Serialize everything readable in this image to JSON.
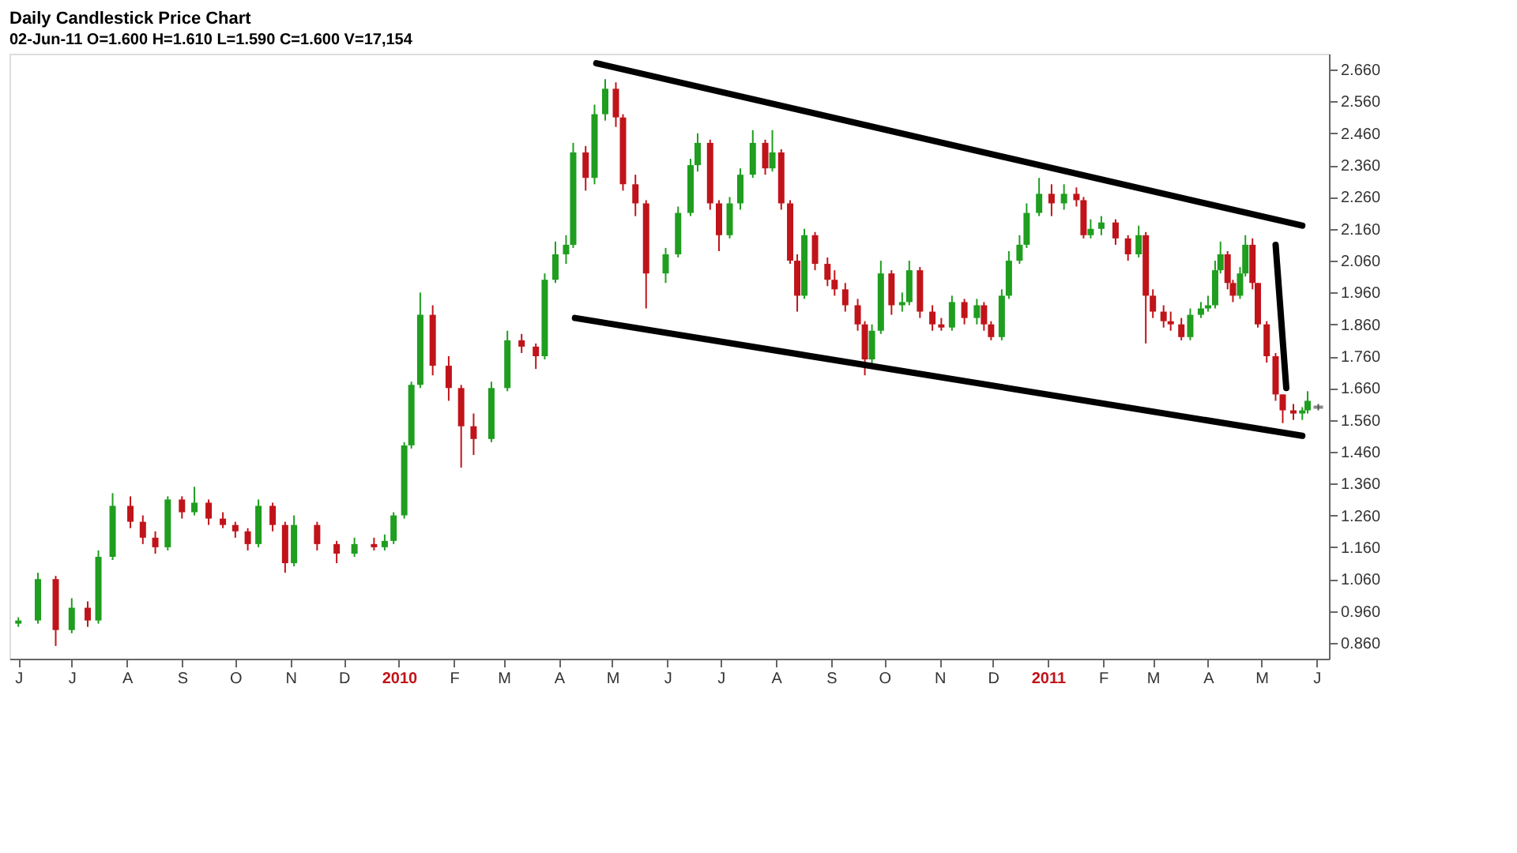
{
  "chart_data": {
    "type": "candlestick",
    "title": "Daily Candlestick Price Chart",
    "subtitle": "02-Jun-11    O=1.600    H=1.610    L=1.590    C=1.600    V=17,154",
    "x": [
      "2009-06-01",
      "2009-06-12",
      "2009-06-22",
      "2009-07-01",
      "2009-07-10",
      "2009-07-16",
      "2009-07-24",
      "2009-08-03",
      "2009-08-10",
      "2009-08-17",
      "2009-08-24",
      "2009-09-01",
      "2009-09-08",
      "2009-09-16",
      "2009-09-24",
      "2009-10-01",
      "2009-10-08",
      "2009-10-14",
      "2009-10-22",
      "2009-10-29",
      "2009-11-03",
      "2009-11-16",
      "2009-11-27",
      "2009-12-07",
      "2009-12-18",
      "2009-12-24",
      "2009-12-29",
      "2010-01-04",
      "2010-01-08",
      "2010-01-13",
      "2010-01-20",
      "2010-01-29",
      "2010-02-05",
      "2010-02-12",
      "2010-02-22",
      "2010-03-03",
      "2010-03-11",
      "2010-03-19",
      "2010-03-24",
      "2010-03-30",
      "2010-04-05",
      "2010-04-09",
      "2010-04-16",
      "2010-04-21",
      "2010-04-27",
      "2010-05-03",
      "2010-05-07",
      "2010-05-14",
      "2010-05-20",
      "2010-05-31",
      "2010-06-07",
      "2010-06-14",
      "2010-06-18",
      "2010-06-25",
      "2010-06-30",
      "2010-07-06",
      "2010-07-12",
      "2010-07-19",
      "2010-07-26",
      "2010-07-30",
      "2010-08-04",
      "2010-08-09",
      "2010-08-13",
      "2010-08-17",
      "2010-08-23",
      "2010-08-30",
      "2010-09-03",
      "2010-09-09",
      "2010-09-16",
      "2010-09-20",
      "2010-09-24",
      "2010-09-29",
      "2010-10-05",
      "2010-10-11",
      "2010-10-15",
      "2010-10-21",
      "2010-10-28",
      "2010-11-02",
      "2010-11-08",
      "2010-11-15",
      "2010-11-22",
      "2010-11-26",
      "2010-11-30",
      "2010-12-06",
      "2010-12-10",
      "2010-12-16",
      "2010-12-20",
      "2010-12-27",
      "2011-01-03",
      "2011-01-10",
      "2011-01-17",
      "2011-01-21",
      "2011-01-25",
      "2011-01-31",
      "2011-02-08",
      "2011-02-15",
      "2011-02-21",
      "2011-02-25",
      "2011-03-01",
      "2011-03-07",
      "2011-03-11",
      "2011-03-17",
      "2011-03-22",
      "2011-03-28",
      "2011-04-01",
      "2011-04-05",
      "2011-04-08",
      "2011-04-12",
      "2011-04-15",
      "2011-04-19",
      "2011-04-22",
      "2011-04-26",
      "2011-04-29",
      "2011-05-04",
      "2011-05-09",
      "2011-05-13",
      "2011-05-19",
      "2011-05-24",
      "2011-05-27",
      "2011-06-02"
    ],
    "ohlc": [
      [
        0.92,
        0.94,
        0.91,
        0.93
      ],
      [
        0.93,
        1.08,
        0.92,
        1.06
      ],
      [
        1.06,
        1.07,
        0.85,
        0.9
      ],
      [
        0.9,
        1.0,
        0.89,
        0.97
      ],
      [
        0.97,
        0.99,
        0.91,
        0.93
      ],
      [
        0.93,
        1.15,
        0.92,
        1.13
      ],
      [
        1.13,
        1.33,
        1.12,
        1.29
      ],
      [
        1.29,
        1.32,
        1.22,
        1.24
      ],
      [
        1.24,
        1.26,
        1.17,
        1.19
      ],
      [
        1.19,
        1.21,
        1.14,
        1.16
      ],
      [
        1.16,
        1.32,
        1.15,
        1.31
      ],
      [
        1.31,
        1.32,
        1.25,
        1.27
      ],
      [
        1.27,
        1.35,
        1.26,
        1.3
      ],
      [
        1.3,
        1.31,
        1.23,
        1.25
      ],
      [
        1.25,
        1.27,
        1.22,
        1.23
      ],
      [
        1.23,
        1.24,
        1.19,
        1.21
      ],
      [
        1.21,
        1.22,
        1.15,
        1.17
      ],
      [
        1.17,
        1.31,
        1.16,
        1.29
      ],
      [
        1.29,
        1.3,
        1.21,
        1.23
      ],
      [
        1.23,
        1.24,
        1.08,
        1.11
      ],
      [
        1.11,
        1.26,
        1.1,
        1.23
      ],
      [
        1.23,
        1.24,
        1.15,
        1.17
      ],
      [
        1.17,
        1.18,
        1.11,
        1.14
      ],
      [
        1.14,
        1.19,
        1.13,
        1.17
      ],
      [
        1.17,
        1.19,
        1.15,
        1.16
      ],
      [
        1.16,
        1.2,
        1.15,
        1.18
      ],
      [
        1.18,
        1.27,
        1.17,
        1.26
      ],
      [
        1.26,
        1.49,
        1.25,
        1.48
      ],
      [
        1.48,
        1.68,
        1.47,
        1.67
      ],
      [
        1.67,
        1.96,
        1.66,
        1.89
      ],
      [
        1.89,
        1.92,
        1.7,
        1.73
      ],
      [
        1.73,
        1.76,
        1.62,
        1.66
      ],
      [
        1.66,
        1.67,
        1.41,
        1.54
      ],
      [
        1.54,
        1.58,
        1.45,
        1.5
      ],
      [
        1.5,
        1.68,
        1.49,
        1.66
      ],
      [
        1.66,
        1.84,
        1.65,
        1.81
      ],
      [
        1.81,
        1.83,
        1.77,
        1.79
      ],
      [
        1.79,
        1.8,
        1.72,
        1.76
      ],
      [
        1.76,
        2.02,
        1.75,
        2.0
      ],
      [
        2.0,
        2.12,
        1.99,
        2.08
      ],
      [
        2.08,
        2.14,
        2.05,
        2.11
      ],
      [
        2.11,
        2.43,
        2.1,
        2.4
      ],
      [
        2.4,
        2.42,
        2.28,
        2.32
      ],
      [
        2.32,
        2.55,
        2.3,
        2.52
      ],
      [
        2.52,
        2.63,
        2.5,
        2.6
      ],
      [
        2.6,
        2.62,
        2.48,
        2.51
      ],
      [
        2.51,
        2.52,
        2.28,
        2.3
      ],
      [
        2.3,
        2.33,
        2.2,
        2.24
      ],
      [
        2.24,
        2.25,
        1.91,
        2.02
      ],
      [
        2.02,
        2.1,
        1.99,
        2.08
      ],
      [
        2.08,
        2.23,
        2.07,
        2.21
      ],
      [
        2.21,
        2.38,
        2.2,
        2.36
      ],
      [
        2.36,
        2.46,
        2.34,
        2.43
      ],
      [
        2.43,
        2.44,
        2.22,
        2.24
      ],
      [
        2.24,
        2.25,
        2.09,
        2.14
      ],
      [
        2.14,
        2.26,
        2.13,
        2.24
      ],
      [
        2.24,
        2.35,
        2.22,
        2.33
      ],
      [
        2.33,
        2.47,
        2.32,
        2.43
      ],
      [
        2.43,
        2.44,
        2.33,
        2.35
      ],
      [
        2.35,
        2.47,
        2.34,
        2.4
      ],
      [
        2.4,
        2.41,
        2.22,
        2.24
      ],
      [
        2.24,
        2.25,
        2.05,
        2.06
      ],
      [
        2.06,
        2.08,
        1.9,
        1.95
      ],
      [
        1.95,
        2.16,
        1.94,
        2.14
      ],
      [
        2.14,
        2.15,
        2.03,
        2.05
      ],
      [
        2.05,
        2.07,
        1.98,
        2.0
      ],
      [
        2.0,
        2.03,
        1.95,
        1.97
      ],
      [
        1.97,
        1.99,
        1.9,
        1.92
      ],
      [
        1.92,
        1.94,
        1.84,
        1.86
      ],
      [
        1.86,
        1.87,
        1.7,
        1.75
      ],
      [
        1.75,
        1.86,
        1.73,
        1.84
      ],
      [
        1.84,
        2.06,
        1.83,
        2.02
      ],
      [
        2.02,
        2.03,
        1.89,
        1.92
      ],
      [
        1.92,
        1.96,
        1.9,
        1.93
      ],
      [
        1.93,
        2.06,
        1.92,
        2.03
      ],
      [
        2.03,
        2.04,
        1.88,
        1.9
      ],
      [
        1.9,
        1.92,
        1.84,
        1.86
      ],
      [
        1.86,
        1.88,
        1.84,
        1.85
      ],
      [
        1.85,
        1.95,
        1.84,
        1.93
      ],
      [
        1.93,
        1.94,
        1.86,
        1.88
      ],
      [
        1.88,
        1.94,
        1.86,
        1.92
      ],
      [
        1.92,
        1.93,
        1.84,
        1.86
      ],
      [
        1.86,
        1.87,
        1.81,
        1.82
      ],
      [
        1.82,
        1.97,
        1.81,
        1.95
      ],
      [
        1.95,
        2.09,
        1.94,
        2.06
      ],
      [
        2.06,
        2.14,
        2.05,
        2.11
      ],
      [
        2.11,
        2.24,
        2.1,
        2.21
      ],
      [
        2.21,
        2.32,
        2.2,
        2.27
      ],
      [
        2.27,
        2.3,
        2.2,
        2.24
      ],
      [
        2.24,
        2.3,
        2.22,
        2.27
      ],
      [
        2.27,
        2.29,
        2.23,
        2.25
      ],
      [
        2.25,
        2.26,
        2.13,
        2.14
      ],
      [
        2.14,
        2.19,
        2.13,
        2.16
      ],
      [
        2.16,
        2.2,
        2.14,
        2.18
      ],
      [
        2.18,
        2.19,
        2.11,
        2.13
      ],
      [
        2.13,
        2.14,
        2.06,
        2.08
      ],
      [
        2.08,
        2.17,
        2.07,
        2.14
      ],
      [
        2.14,
        2.15,
        1.8,
        1.95
      ],
      [
        1.95,
        1.97,
        1.88,
        1.9
      ],
      [
        1.9,
        1.92,
        1.85,
        1.87
      ],
      [
        1.87,
        1.9,
        1.84,
        1.86
      ],
      [
        1.86,
        1.88,
        1.81,
        1.82
      ],
      [
        1.82,
        1.91,
        1.81,
        1.89
      ],
      [
        1.89,
        1.93,
        1.88,
        1.91
      ],
      [
        1.91,
        1.95,
        1.9,
        1.92
      ],
      [
        1.92,
        2.06,
        1.91,
        2.03
      ],
      [
        2.03,
        2.12,
        2.02,
        2.08
      ],
      [
        2.08,
        2.09,
        1.97,
        1.99
      ],
      [
        1.99,
        2.0,
        1.93,
        1.95
      ],
      [
        1.95,
        2.04,
        1.94,
        2.02
      ],
      [
        2.02,
        2.14,
        2.01,
        2.11
      ],
      [
        2.11,
        2.13,
        1.97,
        1.99
      ],
      [
        1.99,
        1.99,
        1.85,
        1.86
      ],
      [
        1.86,
        1.87,
        1.74,
        1.76
      ],
      [
        1.76,
        1.77,
        1.62,
        1.64
      ],
      [
        1.64,
        1.64,
        1.55,
        1.59
      ],
      [
        1.59,
        1.61,
        1.56,
        1.58
      ],
      [
        1.58,
        1.6,
        1.56,
        1.59
      ],
      [
        1.59,
        1.65,
        1.58,
        1.62
      ],
      [
        1.6,
        1.61,
        1.59,
        1.6
      ]
    ],
    "series": [
      {
        "type": "line",
        "color": "#000000",
        "x": [
          "2010-04-22",
          "2011-05-24"
        ],
        "values": [
          2.68,
          2.17
        ]
      },
      {
        "type": "line",
        "color": "#000000",
        "x": [
          "2010-04-10",
          "2011-05-24"
        ],
        "values": [
          1.88,
          1.51
        ]
      },
      {
        "type": "line",
        "color": "#000000",
        "x": [
          "2011-05-09",
          "2011-05-15"
        ],
        "values": [
          2.11,
          1.66
        ]
      }
    ],
    "xlim": [
      "2009-05-27",
      "2011-06-08"
    ],
    "xticks": [
      {
        "value": "2009-06-01",
        "label": "J"
      },
      {
        "value": "2009-07-01",
        "label": "J"
      },
      {
        "value": "2009-08-01",
        "label": "A"
      },
      {
        "value": "2009-09-01",
        "label": "S"
      },
      {
        "value": "2009-10-01",
        "label": "O"
      },
      {
        "value": "2009-11-01",
        "label": "N"
      },
      {
        "value": "2009-12-01",
        "label": "D"
      },
      {
        "value": "2010-01-01",
        "label": "2010"
      },
      {
        "value": "2010-02-01",
        "label": "F"
      },
      {
        "value": "2010-03-01",
        "label": "M"
      },
      {
        "value": "2010-04-01",
        "label": "A"
      },
      {
        "value": "2010-05-01",
        "label": "M"
      },
      {
        "value": "2010-06-01",
        "label": "J"
      },
      {
        "value": "2010-07-01",
        "label": "J"
      },
      {
        "value": "2010-08-01",
        "label": "A"
      },
      {
        "value": "2010-09-01",
        "label": "S"
      },
      {
        "value": "2010-10-01",
        "label": "O"
      },
      {
        "value": "2010-11-01",
        "label": "N"
      },
      {
        "value": "2010-12-01",
        "label": "D"
      },
      {
        "value": "2011-01-01",
        "label": "2011"
      },
      {
        "value": "2011-02-01",
        "label": "F"
      },
      {
        "value": "2011-03-01",
        "label": "M"
      },
      {
        "value": "2011-04-01",
        "label": "A"
      },
      {
        "value": "2011-05-01",
        "label": "M"
      },
      {
        "value": "2011-06-01",
        "label": "J"
      }
    ],
    "ylim": [
      0.81,
      2.71
    ],
    "yticks": [
      {
        "value": 0.86,
        "label": "0.860"
      },
      {
        "value": 0.96,
        "label": "0.960"
      },
      {
        "value": 1.06,
        "label": "1.060"
      },
      {
        "value": 1.16,
        "label": "1.160"
      },
      {
        "value": 1.26,
        "label": "1.260"
      },
      {
        "value": 1.36,
        "label": "1.360"
      },
      {
        "value": 1.46,
        "label": "1.460"
      },
      {
        "value": 1.56,
        "label": "1.560"
      },
      {
        "value": 1.66,
        "label": "1.660"
      },
      {
        "value": 1.76,
        "label": "1.760"
      },
      {
        "value": 1.86,
        "label": "1.860"
      },
      {
        "value": 1.96,
        "label": "1.960"
      },
      {
        "value": 2.06,
        "label": "2.060"
      },
      {
        "value": 2.16,
        "label": "2.160"
      },
      {
        "value": 2.26,
        "label": "2.260"
      },
      {
        "value": 2.36,
        "label": "2.360"
      },
      {
        "value": 2.46,
        "label": "2.460"
      },
      {
        "value": 2.56,
        "label": "2.560"
      },
      {
        "value": 2.66,
        "label": "2.660"
      }
    ],
    "grid": false
  }
}
